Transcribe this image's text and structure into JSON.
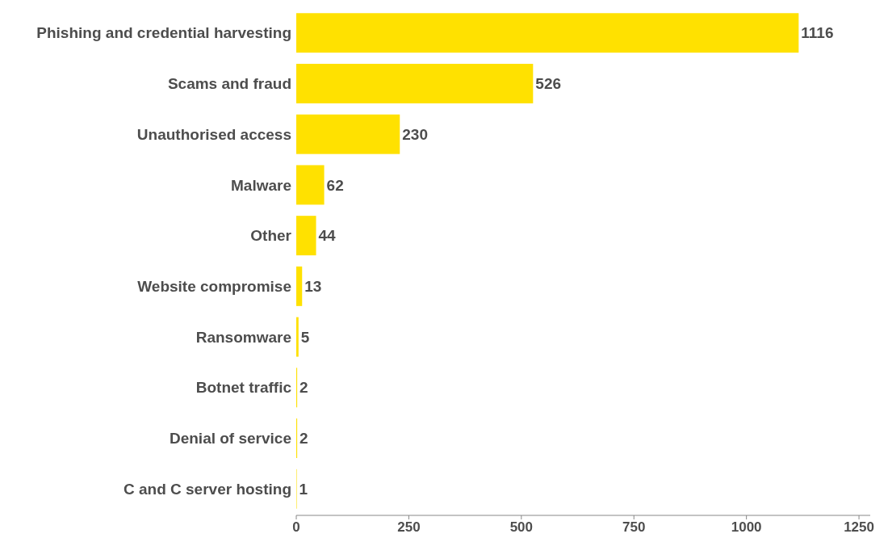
{
  "chart_data": {
    "type": "bar",
    "orientation": "horizontal",
    "categories": [
      "Phishing and credential harvesting",
      "Scams and fraud",
      "Unauthorised access",
      "Malware",
      "Other",
      "Website compromise",
      "Ransomware",
      "Botnet traffic",
      "Denial of service",
      "C and C server hosting"
    ],
    "values": [
      1116,
      526,
      230,
      62,
      44,
      13,
      5,
      2,
      2,
      1
    ],
    "color": "#ffe100",
    "xlim": [
      0,
      1275
    ],
    "xticks": [
      0,
      250,
      500,
      750,
      1000,
      1250
    ],
    "data_labels": true
  }
}
